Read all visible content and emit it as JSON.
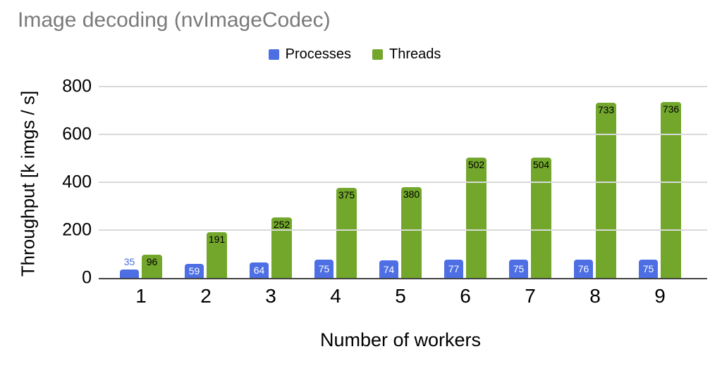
{
  "chart_title": "Image decoding (nvImageCodec)",
  "legend": {
    "items": [
      {
        "label": "Processes",
        "color": "#4d6fe3"
      },
      {
        "label": "Threads",
        "color": "#72a72c"
      }
    ]
  },
  "axes": {
    "y_title": "Throughput [k imgs / s]",
    "x_title": "Number of workers"
  },
  "colors": {
    "title_text": "#7a7a7a",
    "gridline": "#d9d9d9",
    "axis_line": "#424242",
    "processes_label_inside": "#ffffff",
    "threads_label_inside": "#000000"
  },
  "chart_data": {
    "type": "bar",
    "title": "Image decoding (nvImageCodec)",
    "xlabel": "Number of workers",
    "ylabel": "Throughput [k imgs / s]",
    "categories": [
      "1",
      "2",
      "3",
      "4",
      "5",
      "6",
      "7",
      "8",
      "9"
    ],
    "series": [
      {
        "name": "Processes",
        "color": "#4d6fe3",
        "values": [
          35,
          59,
          64,
          75,
          74,
          77,
          75,
          76,
          75
        ]
      },
      {
        "name": "Threads",
        "color": "#72a72c",
        "values": [
          96,
          191,
          252,
          375,
          380,
          502,
          504,
          733,
          736
        ]
      }
    ],
    "ylim": [
      0,
      800
    ],
    "yticks": [
      0,
      200,
      400,
      600,
      800
    ],
    "grid": true,
    "legend_position": "top",
    "data_labels": true
  }
}
